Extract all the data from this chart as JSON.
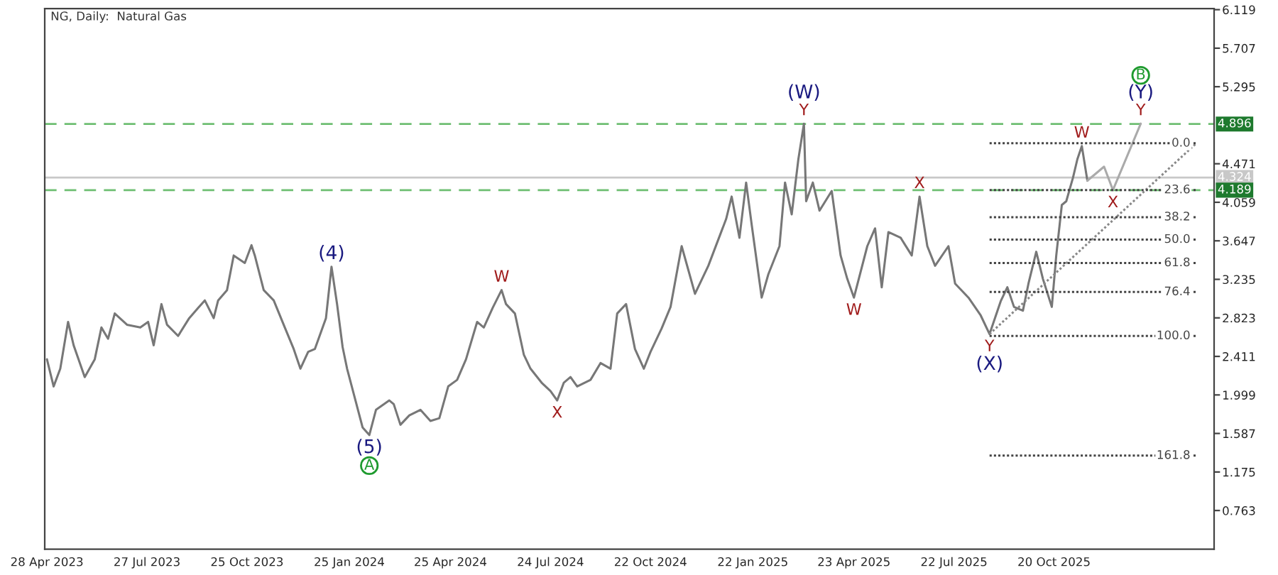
{
  "chart_data": {
    "type": "line",
    "title": "NG, Daily:  Natural Gas",
    "xlim": [
      "2023-04-26",
      "2026-03-13"
    ],
    "ylim": [
      0.35,
      6.13
    ],
    "xticks": [
      {
        "value": "2023-04-28",
        "label": "28 Apr 2023"
      },
      {
        "value": "2023-07-27",
        "label": "27 Jul 2023"
      },
      {
        "value": "2023-10-25",
        "label": "25 Oct 2023"
      },
      {
        "value": "2024-01-25",
        "label": "25 Jan 2024"
      },
      {
        "value": "2024-04-25",
        "label": "25 Apr 2024"
      },
      {
        "value": "2024-07-24",
        "label": "24 Jul 2024"
      },
      {
        "value": "2024-10-22",
        "label": "22 Oct 2024"
      },
      {
        "value": "2025-01-22",
        "label": "22 Jan 2025"
      },
      {
        "value": "2025-04-23",
        "label": "23 Apr 2025"
      },
      {
        "value": "2025-07-22",
        "label": "22 Jul 2025"
      },
      {
        "value": "2025-10-20",
        "label": "20 Oct 2025"
      }
    ],
    "yticks": [
      0.763,
      1.175,
      1.587,
      1.999,
      2.411,
      2.823,
      3.235,
      3.647,
      4.059,
      4.471,
      5.295,
      5.707,
      6.119
    ],
    "grid": false,
    "legend": false,
    "series": [
      {
        "color": "#777777",
        "x": [
          "2023-04-28",
          "2023-05-04",
          "2023-05-10",
          "2023-05-17",
          "2023-05-22",
          "2023-06-01",
          "2023-06-10",
          "2023-06-16",
          "2023-06-22",
          "2023-06-28",
          "2023-07-09",
          "2023-07-21",
          "2023-07-28",
          "2023-08-02",
          "2023-08-09",
          "2023-08-14",
          "2023-08-24",
          "2023-09-03",
          "2023-09-11",
          "2023-09-17",
          "2023-09-25",
          "2023-09-29",
          "2023-10-07",
          "2023-10-13",
          "2023-10-23",
          "2023-10-29",
          "2023-11-01",
          "2023-11-09",
          "2023-11-18",
          "2023-11-28",
          "2023-12-06",
          "2023-12-12",
          "2023-12-19",
          "2023-12-25",
          "2024-01-04",
          "2024-01-09",
          "2024-01-14",
          "2024-01-19",
          "2024-01-23",
          "2024-01-29",
          "2024-02-06",
          "2024-02-12",
          "2024-02-18",
          "2024-03-01",
          "2024-03-05",
          "2024-03-11",
          "2024-03-19",
          "2024-03-29",
          "2024-04-07",
          "2024-04-15",
          "2024-04-23",
          "2024-05-01",
          "2024-05-09",
          "2024-05-19",
          "2024-05-25",
          "2024-06-02",
          "2024-06-10",
          "2024-06-14",
          "2024-06-22",
          "2024-06-30",
          "2024-07-06",
          "2024-07-16",
          "2024-07-24",
          "2024-07-30",
          "2024-08-05",
          "2024-08-11",
          "2024-08-17",
          "2024-08-29",
          "2024-09-07",
          "2024-09-16",
          "2024-09-22",
          "2024-09-30",
          "2024-10-08",
          "2024-10-16",
          "2024-10-22",
          "2024-11-01",
          "2024-11-09",
          "2024-11-19",
          "2024-12-01",
          "2024-12-13",
          "2024-12-29",
          "2025-01-03",
          "2025-01-10",
          "2025-01-16",
          "2025-01-21",
          "2025-01-30",
          "2025-02-05",
          "2025-02-15",
          "2025-02-20",
          "2025-02-26",
          "2025-03-04",
          "2025-03-09",
          "2025-03-11",
          "2025-03-17",
          "2025-03-23",
          "2025-04-03",
          "2025-04-11",
          "2025-04-17",
          "2025-04-23",
          "2025-05-05",
          "2025-05-12",
          "2025-05-18",
          "2025-05-24",
          "2025-06-04",
          "2025-06-14",
          "2025-06-21",
          "2025-06-28",
          "2025-07-05",
          "2025-07-17",
          "2025-07-23",
          "2025-08-04",
          "2025-08-15",
          "2025-08-23",
          "2025-09-02",
          "2025-09-08",
          "2025-09-14",
          "2025-09-22",
          "2025-09-27",
          "2025-10-04",
          "2025-10-10",
          "2025-10-18",
          "2025-10-22",
          "2025-10-27",
          "2025-10-31",
          "2025-11-06",
          "2025-11-10",
          "2025-11-14",
          "2025-11-19"
        ],
        "values": [
          2.38,
          2.09,
          2.28,
          2.78,
          2.53,
          2.19,
          2.38,
          2.72,
          2.6,
          2.87,
          2.75,
          2.72,
          2.78,
          2.53,
          2.97,
          2.75,
          2.63,
          2.82,
          2.93,
          3.01,
          2.82,
          3.01,
          3.12,
          3.49,
          3.41,
          3.6,
          3.49,
          3.12,
          3.01,
          2.72,
          2.49,
          2.28,
          2.46,
          2.49,
          2.82,
          3.37,
          2.97,
          2.51,
          2.28,
          2.01,
          1.65,
          1.57,
          1.84,
          1.94,
          1.9,
          1.68,
          1.78,
          1.84,
          1.72,
          1.75,
          2.09,
          2.16,
          2.38,
          2.78,
          2.72,
          2.93,
          3.12,
          2.97,
          2.87,
          2.43,
          2.28,
          2.13,
          2.04,
          1.94,
          2.13,
          2.19,
          2.09,
          2.16,
          2.34,
          2.28,
          2.87,
          2.97,
          2.49,
          2.28,
          2.46,
          2.71,
          2.94,
          3.59,
          3.08,
          3.38,
          3.88,
          4.12,
          3.68,
          4.27,
          3.82,
          3.04,
          3.29,
          3.59,
          4.27,
          3.93,
          4.52,
          4.9,
          4.07,
          4.27,
          3.97,
          4.18,
          3.49,
          3.24,
          3.04,
          3.59,
          3.78,
          3.15,
          3.74,
          3.68,
          3.49,
          4.12,
          3.59,
          3.38,
          3.59,
          3.19,
          3.04,
          2.85,
          2.65,
          3.0,
          3.15,
          2.94,
          2.9,
          3.19,
          3.53,
          3.24,
          2.94,
          3.49,
          4.03,
          4.07,
          4.32,
          4.52,
          4.66,
          4.29
        ]
      },
      {
        "color": "#aaaaaa",
        "x": [
          "2025-11-19",
          "2025-12-04",
          "2025-12-12",
          "2026-01-06"
        ],
        "values": [
          4.29,
          4.44,
          4.19,
          4.9
        ]
      },
      {
        "color": "#888888",
        "line_style": "dotted",
        "x": [
          "2025-08-23",
          "2026-02-25"
        ],
        "values": [
          2.65,
          4.69
        ]
      },
      {
        "name": "0.0",
        "color": "#444444",
        "line_style": "dotted",
        "x": [
          "2025-08-23",
          "2026-02-25"
        ],
        "values": [
          4.69,
          4.69
        ]
      },
      {
        "name": "23.6",
        "color": "#444444",
        "line_style": "dotted",
        "x": [
          "2025-08-23",
          "2026-02-25"
        ],
        "values": [
          4.19,
          4.19
        ]
      },
      {
        "name": "38.2",
        "color": "#444444",
        "line_style": "dotted",
        "x": [
          "2025-08-23",
          "2026-02-25"
        ],
        "values": [
          3.9,
          3.9
        ]
      },
      {
        "name": "50.0",
        "color": "#444444",
        "line_style": "dotted",
        "x": [
          "2025-08-23",
          "2026-02-25"
        ],
        "values": [
          3.66,
          3.66
        ]
      },
      {
        "name": "61.8",
        "color": "#444444",
        "line_style": "dotted",
        "x": [
          "2025-08-23",
          "2026-02-25"
        ],
        "values": [
          3.41,
          3.41
        ]
      },
      {
        "name": "76.4",
        "color": "#444444",
        "line_style": "dotted",
        "x": [
          "2025-08-23",
          "2026-02-25"
        ],
        "values": [
          3.1,
          3.1
        ]
      },
      {
        "name": "100.0",
        "color": "#444444",
        "line_style": "dotted",
        "x": [
          "2025-08-23",
          "2026-02-25"
        ],
        "values": [
          2.63,
          2.63
        ]
      },
      {
        "name": "161.8",
        "color": "#444444",
        "line_style": "dotted",
        "x": [
          "2025-08-23",
          "2026-02-25"
        ],
        "values": [
          1.35,
          1.35
        ]
      }
    ],
    "ref_lines": [
      {
        "axis": "y",
        "value": 4.896,
        "label": "4.896",
        "color": "#6fbf73",
        "line_style": "dashed"
      },
      {
        "axis": "y",
        "value": 4.324,
        "label": "4.324",
        "color": "#c8c8c8",
        "line_style": "solid"
      },
      {
        "axis": "y",
        "value": 4.189,
        "label": "4.189",
        "color": "#6fbf73",
        "line_style": "dashed"
      }
    ],
    "annotations": [
      {
        "text": "(4)",
        "x": "2024-01-09",
        "y": 3.37
      },
      {
        "text": "(5)",
        "x": "2024-02-12",
        "y": 1.57
      },
      {
        "text": "A",
        "x": "2024-02-12",
        "y": 1.57
      },
      {
        "text": "W",
        "x": "2024-06-10",
        "y": 3.12
      },
      {
        "text": "X",
        "x": "2024-07-30",
        "y": 1.94
      },
      {
        "text": "Y",
        "x": "2025-03-09",
        "y": 4.9
      },
      {
        "text": "(W)",
        "x": "2025-03-09",
        "y": 4.9
      },
      {
        "text": "W",
        "x": "2025-04-23",
        "y": 3.04
      },
      {
        "text": "X",
        "x": "2025-06-21",
        "y": 4.12
      },
      {
        "text": "Y",
        "x": "2025-08-23",
        "y": 2.65
      },
      {
        "text": "(X)",
        "x": "2025-08-23",
        "y": 2.65
      },
      {
        "text": "W",
        "x": "2025-11-14",
        "y": 4.66
      },
      {
        "text": "X",
        "x": "2025-12-12",
        "y": 4.19
      },
      {
        "text": "Y",
        "x": "2026-01-06",
        "y": 4.9
      },
      {
        "text": "(Y)",
        "x": "2026-01-06",
        "y": 4.9
      },
      {
        "text": "B",
        "x": "2026-01-06",
        "y": 4.9
      }
    ]
  }
}
